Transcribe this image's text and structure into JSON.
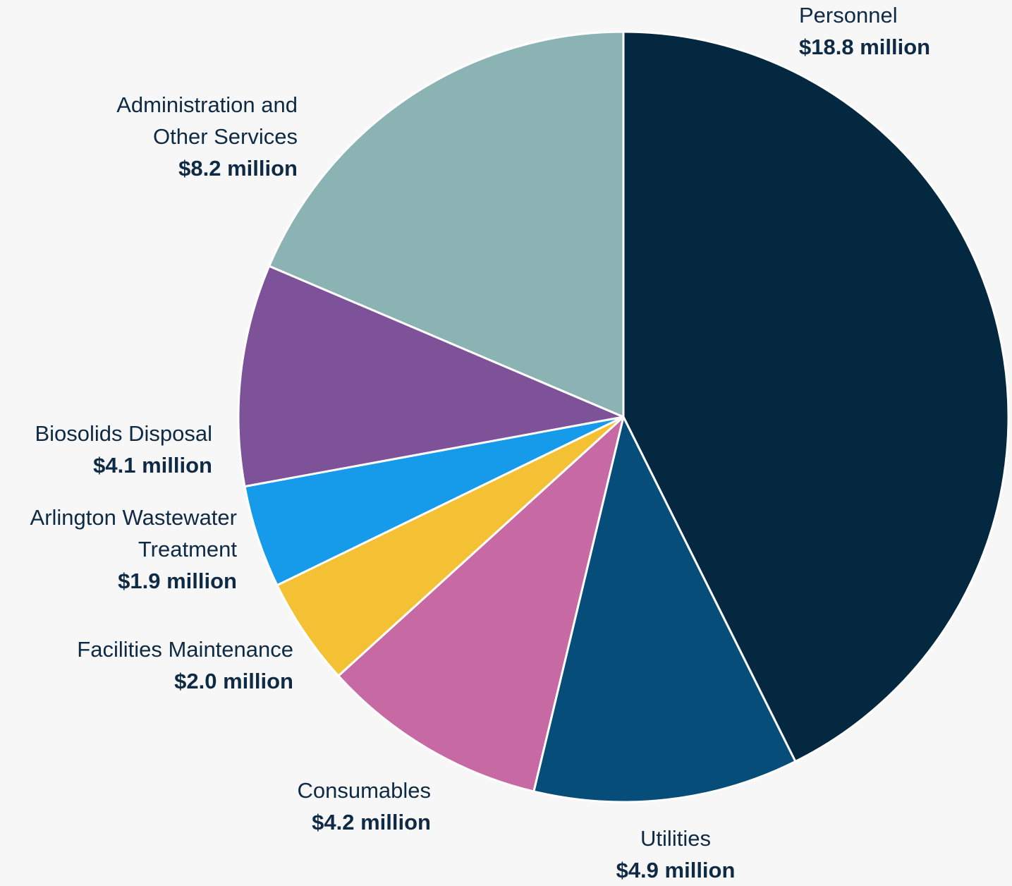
{
  "chart_data": {
    "type": "pie",
    "title": "",
    "unit": "million",
    "slices": [
      {
        "name": "Personnel",
        "value": 18.8,
        "value_label": "$18.8 million",
        "color": "#03283f"
      },
      {
        "name": "Utilities",
        "value": 4.9,
        "value_label": "$4.9 million",
        "color": "#074d79"
      },
      {
        "name": "Consumables",
        "value": 4.2,
        "value_label": "$4.2 million",
        "color": "#c76aa4"
      },
      {
        "name": "Facilities Maintenance",
        "value": 2.0,
        "value_label": "$2.0 million",
        "color": "#f3c133"
      },
      {
        "name": "Arlington Wastewater Treatment",
        "name_lines": [
          "Arlington Wastewater",
          "Treatment"
        ],
        "value": 1.9,
        "value_label": "$1.9 million",
        "color": "#169aea"
      },
      {
        "name": "Biosolids Disposal",
        "value": 4.1,
        "value_label": "$4.1 million",
        "color": "#7d5299"
      },
      {
        "name": "Administration and Other Services",
        "name_lines": [
          "Administration and",
          "Other Services"
        ],
        "value": 8.2,
        "value_label": "$8.2 million",
        "color": "#8bb3b4"
      }
    ],
    "start_angle": "12 o'clock",
    "direction": "clockwise",
    "legend": "none"
  }
}
